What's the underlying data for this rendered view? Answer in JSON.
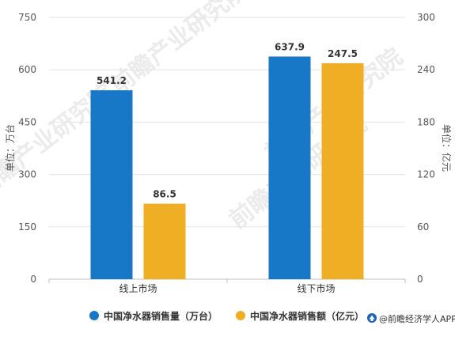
{
  "chart_data": {
    "type": "bar",
    "categories": [
      "线上市场",
      "线下市场"
    ],
    "series": [
      {
        "name": "中国净水器销售量（万台）",
        "axis": "left",
        "values": [
          541.2,
          637.9
        ],
        "labels": [
          "541.2",
          "637.9"
        ],
        "color": "#1878c8"
      },
      {
        "name": "中国净水器销售额（亿元）",
        "axis": "right",
        "values": [
          86.5,
          247.5
        ],
        "labels": [
          "86.5",
          "247.5"
        ],
        "color": "#f0ae24"
      }
    ],
    "ylabel": "单位：万台",
    "y2label": "单位：亿元",
    "ylim": [
      0,
      750
    ],
    "y2lim": [
      0,
      300
    ],
    "yticks": [
      "0",
      "150",
      "300",
      "450",
      "600",
      "750"
    ],
    "y2ticks": [
      "0",
      "60",
      "120",
      "180",
      "240",
      "300"
    ],
    "grid": true,
    "legend_position": "bottom"
  },
  "source": {
    "logo_icon": "qianzhan-logo-icon",
    "text": "@前瞻经济学人APP"
  },
  "watermark": "前瞻产业研究院"
}
